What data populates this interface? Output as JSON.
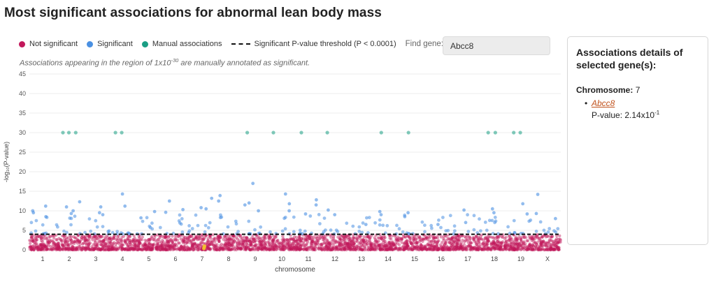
{
  "title": "Most significant associations for abnormal lean body mass",
  "legend": {
    "not_significant": "Not significant",
    "significant": "Significant",
    "manual": "Manual associations",
    "threshold": "Significant P-value threshold (P < 0.0001)"
  },
  "find_gene": {
    "label": "Find gene:",
    "value": "Abcc8"
  },
  "note": {
    "before": "Associations appearing in the region of 1x10",
    "exponent": "-30",
    "after": " are manually annotated as significant."
  },
  "colors": {
    "not_significant": "#c2185b",
    "significant": "#4a90e2",
    "manual": "#1a9e84",
    "highlight": "#f2c12e",
    "grid": "#ececec"
  },
  "details_panel": {
    "title": "Associations details of selected gene(s):",
    "chromosome_label": "Chromosome:",
    "chromosome_value": "7",
    "gene": "Abcc8",
    "pvalue_label": "P-value: ",
    "pvalue_mantissa": "2.14x10",
    "pvalue_exponent": "-1"
  },
  "chart_data": {
    "type": "scatter",
    "xlabel": "chromosome",
    "ylabel": "-log₁₀(P-value)",
    "ylim": [
      0,
      45
    ],
    "yticks": [
      0,
      5,
      10,
      15,
      20,
      25,
      30,
      35,
      40,
      45
    ],
    "threshold": 4,
    "grid": true,
    "chromosomes": [
      "1",
      "2",
      "3",
      "4",
      "5",
      "6",
      "7",
      "8",
      "9",
      "10",
      "11",
      "12",
      "13",
      "14",
      "15",
      "16",
      "17",
      "18",
      "19",
      "X"
    ],
    "manual_associations": [
      {
        "chromosome": "2",
        "y": 30
      },
      {
        "chromosome": "2",
        "y": 30
      },
      {
        "chromosome": "2",
        "y": 30
      },
      {
        "chromosome": "4",
        "y": 30
      },
      {
        "chromosome": "4",
        "y": 30
      },
      {
        "chromosome": "9",
        "y": 30
      },
      {
        "chromosome": "10",
        "y": 30
      },
      {
        "chromosome": "11",
        "y": 30
      },
      {
        "chromosome": "12",
        "y": 30
      },
      {
        "chromosome": "14",
        "y": 30
      },
      {
        "chromosome": "15",
        "y": 30
      },
      {
        "chromosome": "18",
        "y": 30
      },
      {
        "chromosome": "18",
        "y": 30
      },
      {
        "chromosome": "19",
        "y": 30
      },
      {
        "chromosome": "19",
        "y": 30
      }
    ],
    "significant_peaks": [
      {
        "chromosome": "1",
        "y": 11.2
      },
      {
        "chromosome": "1",
        "y": 8.5
      },
      {
        "chromosome": "1",
        "y": 10
      },
      {
        "chromosome": "1",
        "y": 9.5
      },
      {
        "chromosome": "2",
        "y": 10
      },
      {
        "chromosome": "2",
        "y": 11
      },
      {
        "chromosome": "2",
        "y": 12.3
      },
      {
        "chromosome": "2",
        "y": 9.3
      },
      {
        "chromosome": "3",
        "y": 11
      },
      {
        "chromosome": "3",
        "y": 9.5
      },
      {
        "chromosome": "3",
        "y": 9
      },
      {
        "chromosome": "4",
        "y": 14.3
      },
      {
        "chromosome": "4",
        "y": 11.2
      },
      {
        "chromosome": "5",
        "y": 9.8
      },
      {
        "chromosome": "5",
        "y": 8.2
      },
      {
        "chromosome": "6",
        "y": 12.5
      },
      {
        "chromosome": "6",
        "y": 10.3
      },
      {
        "chromosome": "6",
        "y": 9.6
      },
      {
        "chromosome": "7",
        "y": 13.2
      },
      {
        "chromosome": "7",
        "y": 10.8
      },
      {
        "chromosome": "7",
        "y": 10.5
      },
      {
        "chromosome": "8",
        "y": 13.9
      },
      {
        "chromosome": "8",
        "y": 12.5
      },
      {
        "chromosome": "9",
        "y": 17
      },
      {
        "chromosome": "9",
        "y": 12
      },
      {
        "chromosome": "9",
        "y": 11.5
      },
      {
        "chromosome": "9",
        "y": 10
      },
      {
        "chromosome": "10",
        "y": 14.3
      },
      {
        "chromosome": "10",
        "y": 11.8
      },
      {
        "chromosome": "10",
        "y": 10
      },
      {
        "chromosome": "11",
        "y": 12.8
      },
      {
        "chromosome": "11",
        "y": 11.5
      },
      {
        "chromosome": "11",
        "y": 9.2
      },
      {
        "chromosome": "12",
        "y": 10.2
      },
      {
        "chromosome": "12",
        "y": 9
      },
      {
        "chromosome": "13",
        "y": 6.5
      },
      {
        "chromosome": "14",
        "y": 9.8
      },
      {
        "chromosome": "14",
        "y": 9
      },
      {
        "chromosome": "15",
        "y": 9.5
      },
      {
        "chromosome": "15",
        "y": 8.5
      },
      {
        "chromosome": "16",
        "y": 6.5
      },
      {
        "chromosome": "17",
        "y": 10.2
      },
      {
        "chromosome": "17",
        "y": 7
      },
      {
        "chromosome": "18",
        "y": 10.5
      },
      {
        "chromosome": "18",
        "y": 9.5
      },
      {
        "chromosome": "19",
        "y": 11.8
      },
      {
        "chromosome": "19",
        "y": 9.2
      },
      {
        "chromosome": "X",
        "y": 14.2
      },
      {
        "chromosome": "X",
        "y": 9.3
      },
      {
        "chromosome": "X",
        "y": 8
      }
    ],
    "selected_gene": {
      "name": "Abcc8",
      "chromosome": "7",
      "y": 0.67
    }
  }
}
